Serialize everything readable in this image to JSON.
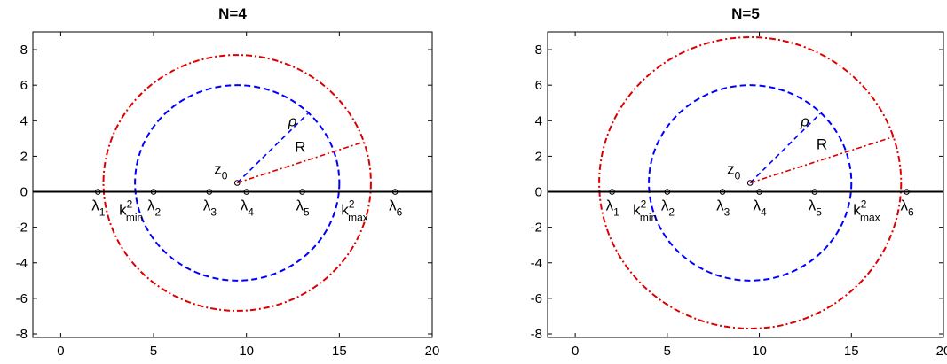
{
  "chart_data": [
    {
      "type": "scatter",
      "title": "N=4",
      "xlabel": "",
      "ylabel": "",
      "xlim": [
        -1.5,
        20
      ],
      "ylim": [
        -8.2,
        9.0
      ],
      "xticks": [
        0,
        5,
        10,
        15,
        20
      ],
      "yticks": [
        -8,
        -6,
        -4,
        -2,
        0,
        2,
        4,
        6,
        8
      ],
      "xtick_labels": [
        "0",
        "5",
        "10",
        "15",
        "20"
      ],
      "ytick_labels": [
        "-8",
        "-6",
        "-4",
        "-2",
        "0",
        "2",
        "4",
        "6",
        "8"
      ],
      "grid": false,
      "axis_line_y": 0,
      "eigenvalues": [
        {
          "name": "λ",
          "sub": "1",
          "x": 2
        },
        {
          "name": "λ",
          "sub": "2",
          "x": 5
        },
        {
          "name": "λ",
          "sub": "3",
          "x": 8
        },
        {
          "name": "λ",
          "sub": "4",
          "x": 10
        },
        {
          "name": "λ",
          "sub": "5",
          "x": 13
        },
        {
          "name": "λ",
          "sub": "6",
          "x": 18
        }
      ],
      "center": {
        "name": "z",
        "sub": "0",
        "x": 9.5,
        "y": 0.5
      },
      "inner_circle": {
        "color": "#0000ff",
        "style": "dashed",
        "cx": 9.5,
        "cy": 0.5,
        "radius": 5.5
      },
      "outer_circle": {
        "color": "#dd0000",
        "style": "dash-dot",
        "cx": 9.5,
        "cy": 0.5,
        "radius": 7.2
      },
      "rho": {
        "label": "ρ",
        "end": [
          13.3,
          4.4
        ]
      },
      "R": {
        "label": "R",
        "end": [
          16.3,
          2.8
        ]
      },
      "k_min": {
        "label": "k",
        "sup": "2",
        "sub": "min",
        "x": 4.0
      },
      "k_max": {
        "label": "k",
        "sup": "2",
        "sub": "max",
        "x": 15.0
      }
    },
    {
      "type": "scatter",
      "title": "N=5",
      "xlabel": "",
      "ylabel": "",
      "xlim": [
        -1.5,
        20
      ],
      "ylim": [
        -8.2,
        9.0
      ],
      "xticks": [
        0,
        5,
        10,
        15,
        20
      ],
      "yticks": [
        -8,
        -6,
        -4,
        -2,
        0,
        2,
        4,
        6,
        8
      ],
      "xtick_labels": [
        "0",
        "5",
        "10",
        "15",
        "20"
      ],
      "ytick_labels": [
        "-8",
        "-6",
        "-4",
        "-2",
        "0",
        "2",
        "4",
        "6",
        "8"
      ],
      "grid": false,
      "axis_line_y": 0,
      "eigenvalues": [
        {
          "name": "λ",
          "sub": "1",
          "x": 2
        },
        {
          "name": "λ",
          "sub": "2",
          "x": 5
        },
        {
          "name": "λ",
          "sub": "3",
          "x": 8
        },
        {
          "name": "λ",
          "sub": "4",
          "x": 10
        },
        {
          "name": "λ",
          "sub": "5",
          "x": 13
        },
        {
          "name": "λ",
          "sub": "6",
          "x": 18
        }
      ],
      "center": {
        "name": "z",
        "sub": "0",
        "x": 9.5,
        "y": 0.5
      },
      "inner_circle": {
        "color": "#0000ff",
        "style": "dashed",
        "cx": 9.5,
        "cy": 0.5,
        "radius": 5.5
      },
      "outer_circle": {
        "color": "#dd0000",
        "style": "dash-dot",
        "cx": 9.5,
        "cy": 0.5,
        "radius": 8.2
      },
      "rho": {
        "label": "ρ",
        "end": [
          13.3,
          4.4
        ]
      },
      "R": {
        "label": "R",
        "end": [
          17.3,
          3.1
        ]
      },
      "k_min": {
        "label": "k",
        "sup": "2",
        "sub": "min",
        "x": 4.0
      },
      "k_max": {
        "label": "k",
        "sup": "2",
        "sub": "max",
        "x": 15.0
      }
    }
  ]
}
